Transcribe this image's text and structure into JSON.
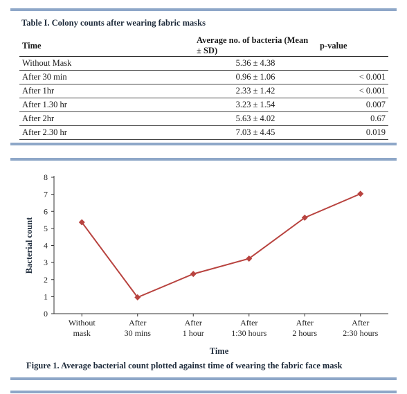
{
  "table": {
    "title": "Table I. Colony counts after wearing fabric masks",
    "headers": [
      "Time",
      "Average no. of bacteria (Mean ± SD)",
      "p-value"
    ],
    "rows": [
      [
        "Without Mask",
        "5.36 ± 4.38",
        ""
      ],
      [
        "After 30 min",
        "0.96 ± 1.06",
        "< 0.001"
      ],
      [
        "After 1hr",
        "2.33 ± 1.42",
        "< 0.001"
      ],
      [
        "After 1.30 hr",
        "3.23 ± 1.54",
        "0.007"
      ],
      [
        "After 2hr",
        "5.63 ± 4.02",
        "0.67"
      ],
      [
        "After 2.30 hr",
        "7.03 ± 4.45",
        "0.019"
      ]
    ]
  },
  "chart_data": {
    "type": "line",
    "categories": [
      [
        "Without",
        "mask"
      ],
      [
        "After",
        "30 mins"
      ],
      [
        "After",
        "1 hour"
      ],
      [
        "After",
        "1:30 hours"
      ],
      [
        "After",
        "2 hours"
      ],
      [
        "After",
        "2:30 hours"
      ]
    ],
    "series": [
      {
        "values": [
          5.36,
          0.96,
          2.33,
          3.23,
          5.63,
          7.03
        ]
      }
    ],
    "xlabel": "Time",
    "ylabel": "Bacterial count",
    "ylim": [
      0,
      8
    ],
    "yticks": [
      "0",
      "1",
      "2",
      "3",
      "4",
      "5",
      "6",
      "7",
      "8"
    ],
    "grid": false,
    "color": "#b8433f"
  },
  "figure": {
    "caption": "Figure 1. Average bacterial count plotted against time of wearing the fabric face mask"
  }
}
